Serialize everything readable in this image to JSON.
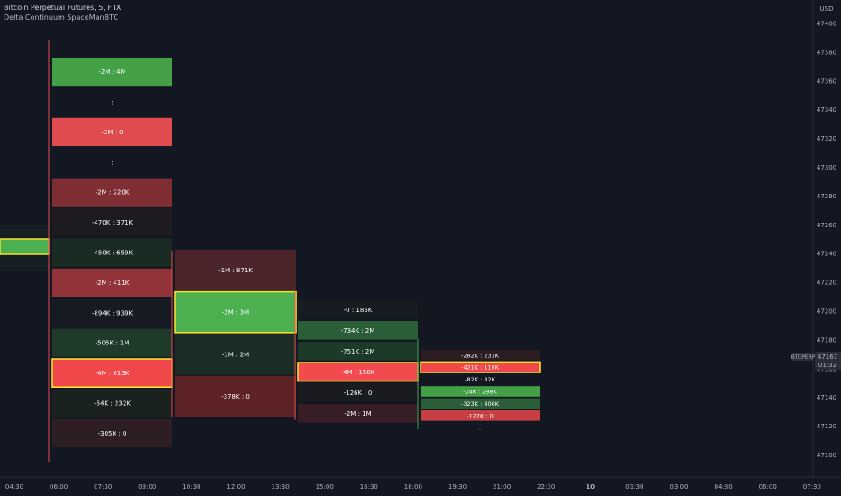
{
  "header": {
    "title": "Bitcoin Perpetual Futures, 5, FTX",
    "indicator": "Delta Continuum SpaceManBTC"
  },
  "chart_data": {
    "type": "heatmap",
    "currency": "USD",
    "ylim": [
      47090,
      47410
    ],
    "y_ticks": [
      47400,
      47380,
      47360,
      47340,
      47320,
      47300,
      47280,
      47260,
      47240,
      47220,
      47200,
      47180,
      47160,
      47140,
      47120,
      47100
    ],
    "x_ticks": [
      "04:30",
      "06:00",
      "07:30",
      "09:00",
      "10:30",
      "12:00",
      "13:30",
      "15:00",
      "16:30",
      "18:00",
      "19:30",
      "21:00",
      "22:30",
      "10",
      "01:30",
      "03:00",
      "04:30",
      "06:00",
      "07:30"
    ],
    "price_label": {
      "symbol": "BTCPERP",
      "price": "47167",
      "countdown": "01:32"
    },
    "columns": [
      {
        "cells": [
          {
            "label": "-2M : 4M",
            "color": "#43a047",
            "highlight": false
          },
          {
            "label": ":",
            "color": "#131722",
            "highlight": false
          },
          {
            "label": "-2M : 0",
            "color": "#e04b4f",
            "highlight": false
          },
          {
            "label": ":",
            "color": "#131722",
            "highlight": false
          },
          {
            "label": "-2M : 220K",
            "color": "#7f2f34",
            "highlight": false
          },
          {
            "label": "-470K : 371K",
            "color": "#1d1a20",
            "highlight": false
          },
          {
            "label": "-450K : 659K",
            "color": "#1a2b23",
            "highlight": false
          },
          {
            "label": "-2M : 411K",
            "color": "#913339",
            "highlight": false
          },
          {
            "label": "-894K : 939K",
            "color": "#161a22",
            "highlight": false
          },
          {
            "label": "-505K : 1M",
            "color": "#1f3a29",
            "highlight": false
          },
          {
            "label": "-4M : 613K",
            "color": "#f0474b",
            "highlight": true
          },
          {
            "label": "-54K : 232K",
            "color": "#19221f",
            "highlight": false
          },
          {
            "label": "-305K : 0",
            "color": "#2d1e24",
            "highlight": false
          }
        ]
      },
      {
        "cells": [
          {
            "label": "-1M : 871K",
            "color": "#4b2529",
            "highlight": false
          },
          {
            "label": "-2M : 3M",
            "color": "#4caf50",
            "highlight": true
          },
          {
            "label": "-1M : 2M",
            "color": "#1b2d24",
            "highlight": false
          },
          {
            "label": "-378K : 0",
            "color": "#5c2226",
            "highlight": false
          }
        ]
      },
      {
        "cells": [
          {
            "label": "-0 : 185K",
            "color": "#161c1f",
            "highlight": false
          },
          {
            "label": "-734K : 2M",
            "color": "#2a5e36",
            "highlight": false
          },
          {
            "label": "-751K : 2M",
            "color": "#1d3a28",
            "highlight": false
          },
          {
            "label": "-4M : 158K",
            "color": "#f24a4e",
            "highlight": true
          },
          {
            "label": "-126K : 0",
            "color": "#1a1a21",
            "highlight": false
          },
          {
            "label": "-2M : 1M",
            "color": "#361e24",
            "highlight": false
          }
        ]
      },
      {
        "cells": [
          {
            "label": "-282K : 231K",
            "color": "#2c1d23",
            "highlight": false
          },
          {
            "label": "-421K : 118K",
            "color": "#f0474b",
            "highlight": true
          },
          {
            "label": "-82K : 82K",
            "color": "#131722",
            "highlight": false
          },
          {
            "label": "-24K : 298K",
            "color": "#43a047",
            "highlight": false
          },
          {
            "label": "-323K : 406K",
            "color": "#2a5e36",
            "highlight": false
          },
          {
            "label": "-127K : 0",
            "color": "#c73e44",
            "highlight": false
          },
          {
            "label": ":",
            "color": "#131722",
            "highlight": false
          }
        ]
      }
    ],
    "prior_segment": {
      "color": "#4caf50",
      "highlight": true
    }
  }
}
